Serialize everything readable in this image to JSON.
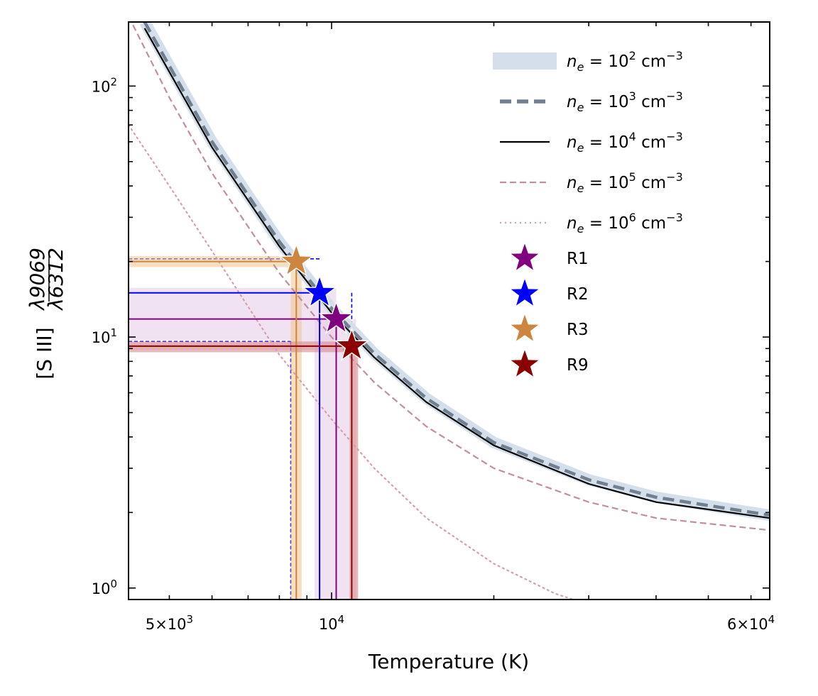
{
  "chart_data": {
    "type": "line",
    "title": "",
    "xlabel": "Temperature (K)",
    "ylabel": "[S III] λ9069/λ6312",
    "ylabel_parts": {
      "bracket": "[S III]",
      "numerator": "λ9069",
      "denominator": "λ6312"
    },
    "xscale": "log",
    "yscale": "log",
    "xlim": [
      4200,
      65000
    ],
    "ylim": [
      0.9,
      180
    ],
    "x_ticks": [
      {
        "value": 5000,
        "mantissa": "5",
        "exp": "3"
      },
      {
        "value": 10000,
        "mantissa": "",
        "exp": "4"
      },
      {
        "value": 60000,
        "mantissa": "6",
        "exp": "4"
      }
    ],
    "y_ticks": [
      {
        "value": 1,
        "exp": "0"
      },
      {
        "value": 10,
        "exp": "1"
      },
      {
        "value": 100,
        "exp": "2"
      }
    ],
    "grid": false,
    "legend_position": "top-right",
    "series": [
      {
        "name": "n_e = 10^2 cm^-3",
        "density_exp": "2",
        "style": "band",
        "color": "#d5dfeb",
        "points": [
          [
            4500,
            180
          ],
          [
            6000,
            60
          ],
          [
            8000,
            24
          ],
          [
            10000,
            13
          ],
          [
            12000,
            8.6
          ],
          [
            15000,
            5.7
          ],
          [
            20000,
            3.8
          ],
          [
            30000,
            2.7
          ],
          [
            40000,
            2.3
          ],
          [
            65000,
            1.95
          ]
        ]
      },
      {
        "name": "n_e = 10^3 cm^-3",
        "density_exp": "3",
        "style": "dashed",
        "color": "#718090",
        "points": [
          [
            4500,
            180
          ],
          [
            6000,
            60
          ],
          [
            8000,
            24
          ],
          [
            10000,
            13
          ],
          [
            12000,
            8.6
          ],
          [
            15000,
            5.7
          ],
          [
            20000,
            3.8
          ],
          [
            30000,
            2.7
          ],
          [
            40000,
            2.3
          ],
          [
            65000,
            1.95
          ]
        ]
      },
      {
        "name": "n_e = 10^4 cm^-3",
        "density_exp": "4",
        "style": "solid",
        "color": "#000000",
        "points": [
          [
            4500,
            170
          ],
          [
            6000,
            57
          ],
          [
            8000,
            23
          ],
          [
            10000,
            12.5
          ],
          [
            12000,
            8.3
          ],
          [
            15000,
            5.5
          ],
          [
            20000,
            3.7
          ],
          [
            30000,
            2.6
          ],
          [
            40000,
            2.2
          ],
          [
            65000,
            1.9
          ]
        ]
      },
      {
        "name": "n_e = 10^5 cm^-3",
        "density_exp": "5",
        "style": "dashed-thin",
        "color": "#bf8f9c",
        "points": [
          [
            4200,
            190
          ],
          [
            5000,
            90
          ],
          [
            6000,
            45
          ],
          [
            8000,
            18
          ],
          [
            10000,
            10
          ],
          [
            12000,
            6.6
          ],
          [
            15000,
            4.4
          ],
          [
            20000,
            3.0
          ],
          [
            30000,
            2.2
          ],
          [
            40000,
            1.9
          ],
          [
            65000,
            1.7
          ]
        ]
      },
      {
        "name": "n_e = 10^6 cm^-3",
        "density_exp": "6",
        "style": "dotted",
        "color": "#d4a1aa",
        "points": [
          [
            4200,
            70
          ],
          [
            5000,
            40
          ],
          [
            6000,
            22
          ],
          [
            8000,
            8.5
          ],
          [
            10000,
            4.7
          ],
          [
            12000,
            3.0
          ],
          [
            15000,
            1.9
          ],
          [
            20000,
            1.25
          ],
          [
            26000,
            0.95
          ],
          [
            29000,
            0.88
          ]
        ]
      }
    ],
    "regions": [
      {
        "name": "R1",
        "marker": "star",
        "color": "#800080",
        "temp": 10200,
        "ratio": 11.8,
        "temp_range": [
          9300,
          11100
        ],
        "ratio_range": [
          8.9,
          15.7
        ],
        "band_fill": "#e8cfe8"
      },
      {
        "name": "R2",
        "marker": "star",
        "color": "#0000ff",
        "temp": 9500,
        "ratio": 15,
        "temp_range": [
          8400,
          10900
        ],
        "ratio_range": [
          9.6,
          20.5
        ],
        "band_fill": "none"
      },
      {
        "name": "R3",
        "marker": "star",
        "color": "#cd853f",
        "temp": 8600,
        "ratio": 20,
        "temp_range": [
          8400,
          8800
        ],
        "ratio_range": [
          19,
          21
        ],
        "band_fill": "#f0c896"
      },
      {
        "name": "R9",
        "marker": "star",
        "color": "#8b0000",
        "temp": 10900,
        "ratio": 9.2,
        "temp_range": [
          10800,
          11200
        ],
        "ratio_range": [
          8.7,
          9.6
        ],
        "band_fill": "#d98a8a"
      }
    ],
    "legend_labels": {
      "ne_prefix": "n",
      "ne_sub": "e",
      "ne_equals": " = 10",
      "unit": " cm",
      "unit_exp": "−3"
    }
  }
}
